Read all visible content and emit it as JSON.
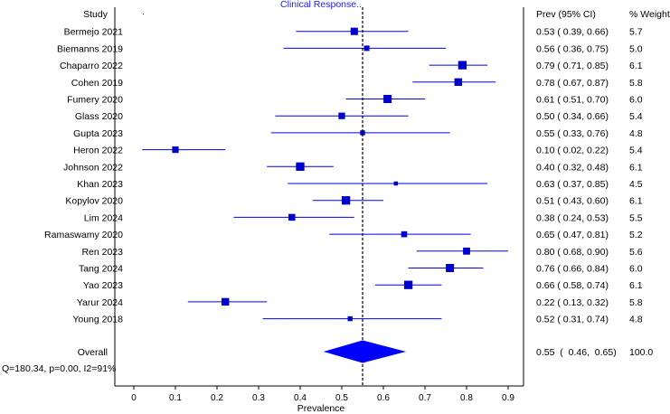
{
  "chart_data": {
    "type": "forest",
    "title": "Clinical Response..",
    "xlabel": "Prevalence",
    "xlim": [
      0,
      0.9
    ],
    "xticks": [
      "0",
      "0.1",
      "0.2",
      "0.3",
      "0.4",
      "0.5",
      "0.6",
      "0.7",
      "0.8",
      "0.9"
    ],
    "headers": {
      "study": "Study",
      "ci": "Prev (95% CI)",
      "weight": "% Weight"
    },
    "studies": [
      {
        "name": "Bermejo 2021",
        "prev": 0.53,
        "lo": 0.39,
        "hi": 0.66,
        "ci_text": "0.53  (  0.39,  0.66)",
        "weight": "5.7"
      },
      {
        "name": "Biemanns 2019",
        "prev": 0.56,
        "lo": 0.36,
        "hi": 0.75,
        "ci_text": "0.56  (  0.36,  0.75)",
        "weight": "5.0"
      },
      {
        "name": "Chaparro 2022",
        "prev": 0.79,
        "lo": 0.71,
        "hi": 0.85,
        "ci_text": "0.79  (  0.71,  0.85)",
        "weight": "6.1"
      },
      {
        "name": "Cohen 2019",
        "prev": 0.78,
        "lo": 0.67,
        "hi": 0.87,
        "ci_text": "0.78  (  0.67,  0.87)",
        "weight": "5.8"
      },
      {
        "name": "Fumery 2020",
        "prev": 0.61,
        "lo": 0.51,
        "hi": 0.7,
        "ci_text": "0.61  (  0.51,  0.70)",
        "weight": "6.0"
      },
      {
        "name": "Glass 2020",
        "prev": 0.5,
        "lo": 0.34,
        "hi": 0.66,
        "ci_text": "0.50  (  0.34,  0.66)",
        "weight": "5.4"
      },
      {
        "name": "Gupta 2023",
        "prev": 0.55,
        "lo": 0.33,
        "hi": 0.76,
        "ci_text": "0.55  (  0.33,  0.76)",
        "weight": "4.8"
      },
      {
        "name": "Heron 2022",
        "prev": 0.1,
        "lo": 0.02,
        "hi": 0.22,
        "ci_text": "0.10  (  0.02,  0.22)",
        "weight": "5.4"
      },
      {
        "name": "Johnson 2022",
        "prev": 0.4,
        "lo": 0.32,
        "hi": 0.48,
        "ci_text": "0.40  (  0.32,  0.48)",
        "weight": "6.1"
      },
      {
        "name": "Khan 2023",
        "prev": 0.63,
        "lo": 0.37,
        "hi": 0.85,
        "ci_text": "0.63  (  0.37,  0.85)",
        "weight": "4.5"
      },
      {
        "name": "Kopylov 2020",
        "prev": 0.51,
        "lo": 0.43,
        "hi": 0.6,
        "ci_text": "0.51  (  0.43,  0.60)",
        "weight": "6.1"
      },
      {
        "name": "Lim 2024",
        "prev": 0.38,
        "lo": 0.24,
        "hi": 0.53,
        "ci_text": "0.38  (  0.24,  0.53)",
        "weight": "5.5"
      },
      {
        "name": "Ramaswamy 2020",
        "prev": 0.65,
        "lo": 0.47,
        "hi": 0.81,
        "ci_text": "0.65  (  0.47,  0.81)",
        "weight": "5.2"
      },
      {
        "name": "Ren 2023",
        "prev": 0.8,
        "lo": 0.68,
        "hi": 0.9,
        "ci_text": "0.80  (  0.68,  0.90)",
        "weight": "5.6"
      },
      {
        "name": "Tang 2024",
        "prev": 0.76,
        "lo": 0.66,
        "hi": 0.84,
        "ci_text": "0.76  (  0.66,  0.84)",
        "weight": "6.0"
      },
      {
        "name": "Yao 2023",
        "prev": 0.66,
        "lo": 0.58,
        "hi": 0.74,
        "ci_text": "0.66  (  0.58,  0.74)",
        "weight": "6.1"
      },
      {
        "name": "Yarur 2024",
        "prev": 0.22,
        "lo": 0.13,
        "hi": 0.32,
        "ci_text": "0.22  (  0.13,  0.32)",
        "weight": "5.8"
      },
      {
        "name": "Young 2018",
        "prev": 0.52,
        "lo": 0.31,
        "hi": 0.74,
        "ci_text": "0.52  (  0.31,  0.74)",
        "weight": "4.8"
      }
    ],
    "overall": {
      "name": "Overall",
      "prev": 0.55,
      "lo": 0.46,
      "hi": 0.65,
      "ci_text": "0.55  (  0.46,  0.65)",
      "weight": "100.0"
    },
    "heterogeneity": "Q=180.34, p=0.00, I2=91%",
    "colors": {
      "marker": "#0000cc",
      "line": "#0000ee",
      "axis": "#000000"
    }
  }
}
